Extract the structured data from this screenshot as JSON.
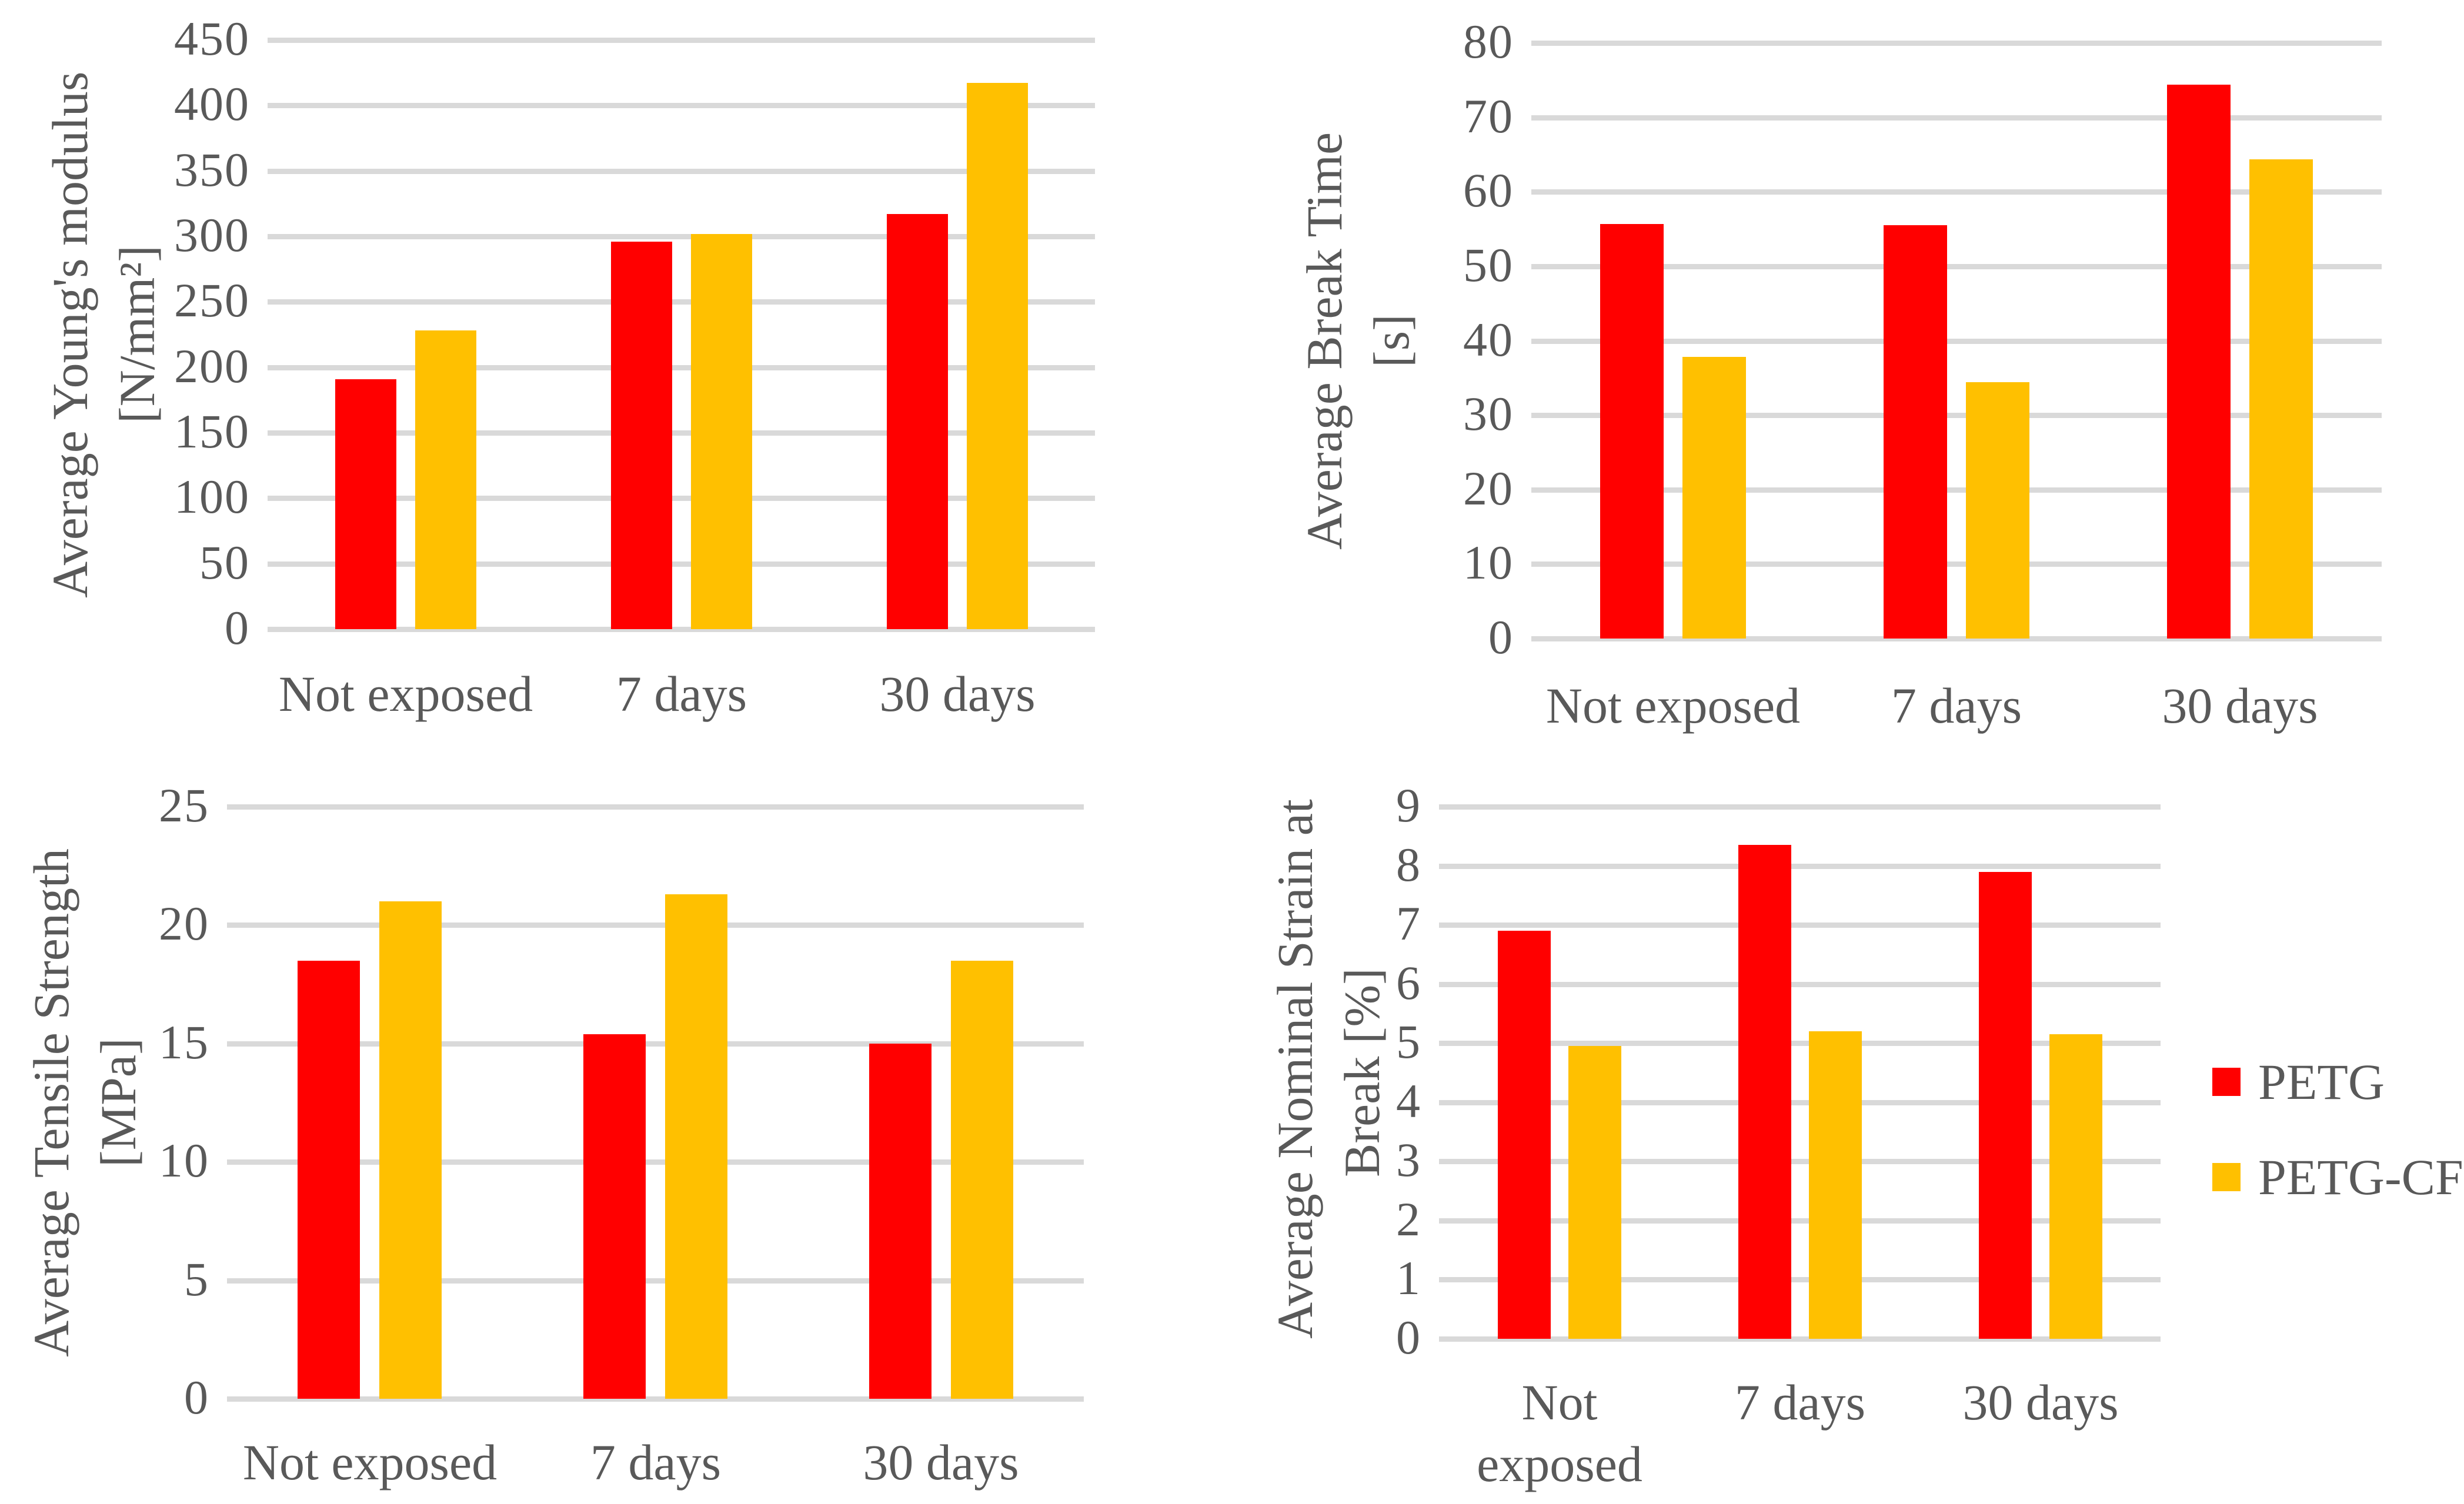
{
  "figure": {
    "description": "2x2 grid of clustered bar charts comparing PETG and PETG-CF after UV exposure durations",
    "background_color": "#FFFFFF",
    "text_color": "#595959",
    "gridline_color": "#D9D9D9"
  },
  "categories": [
    "Not exposed",
    "7 days",
    "30 days"
  ],
  "legend": {
    "position": "right-middle, beside bottom-right chart",
    "items": [
      {
        "label": "PETG",
        "color": "#FF0000"
      },
      {
        "label": "PETG-CF",
        "color": "#FFC000"
      }
    ]
  },
  "chart_data": [
    {
      "id": "youngs-modulus",
      "type": "bar",
      "title": "",
      "ylabel": "Average Young's modulus [N/mm²]",
      "title_lines": [
        "Average Young's modulus",
        "[N/mm²]"
      ],
      "categories": [
        "Not exposed",
        "7 days",
        "30 days"
      ],
      "series": [
        {
          "name": "PETG",
          "color": "#FF0000",
          "values": [
            191,
            296,
            317
          ]
        },
        {
          "name": "PETG-CF",
          "color": "#FFC000",
          "values": [
            228,
            302,
            417
          ]
        }
      ],
      "ylim": [
        0,
        450
      ],
      "ytick_step": 50,
      "yticks": [
        450,
        400,
        350,
        300,
        250,
        200,
        150,
        100,
        50,
        0
      ],
      "grid": true
    },
    {
      "id": "break-time",
      "type": "bar",
      "title": "",
      "ylabel": "Average Break Time [s]",
      "title_lines": [
        "Average Break Time",
        "[s]"
      ],
      "categories": [
        "Not exposed",
        "7 days",
        "30 days"
      ],
      "series": [
        {
          "name": "PETG",
          "color": "#FF0000",
          "values": [
            55.7,
            55.5,
            74.4
          ]
        },
        {
          "name": "PETG-CF",
          "color": "#FFC000",
          "values": [
            37.8,
            34.4,
            64.4
          ]
        }
      ],
      "ylim": [
        0,
        80
      ],
      "ytick_step": 10,
      "yticks": [
        80,
        70,
        60,
        50,
        40,
        30,
        20,
        10,
        0
      ],
      "grid": true
    },
    {
      "id": "tensile-strength",
      "type": "bar",
      "title": "",
      "ylabel": "Average Tensile Strength [MPa]",
      "title_lines": [
        "Average Tensile Strength",
        "[MPa]"
      ],
      "categories": [
        "Not exposed",
        "7 days",
        "30 days"
      ],
      "series": [
        {
          "name": "PETG",
          "color": "#FF0000",
          "values": [
            18.5,
            15.4,
            15.0
          ]
        },
        {
          "name": "PETG-CF",
          "color": "#FFC000",
          "values": [
            21.0,
            21.3,
            18.5
          ]
        }
      ],
      "ylim": [
        0,
        25
      ],
      "ytick_step": 5,
      "yticks": [
        25,
        20,
        15,
        10,
        5,
        0
      ],
      "grid": true
    },
    {
      "id": "nominal-strain-at-break",
      "type": "bar",
      "title": "",
      "ylabel": "Average Nominal Strain at Break [%]",
      "title_lines": [
        "Average Nominal Strain at",
        "Break [%]"
      ],
      "categories": [
        "Not exposed",
        "7 days",
        "30 days"
      ],
      "series": [
        {
          "name": "PETG",
          "color": "#FF0000",
          "values": [
            6.9,
            8.35,
            7.9
          ]
        },
        {
          "name": "PETG-CF",
          "color": "#FFC000",
          "values": [
            4.95,
            5.2,
            5.15
          ]
        }
      ],
      "ylim": [
        0,
        9
      ],
      "ytick_step": 1,
      "yticks": [
        9,
        8,
        7,
        6,
        5,
        4,
        3,
        2,
        1,
        0
      ],
      "grid": true
    }
  ]
}
